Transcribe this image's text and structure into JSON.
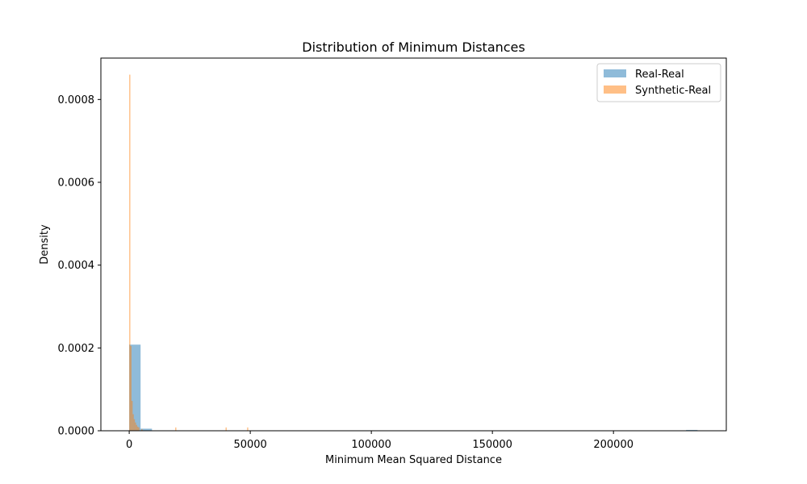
{
  "chart_data": {
    "type": "bar",
    "title": "Distribution of Minimum Distances",
    "xlabel": "Minimum Mean Squared Distance",
    "ylabel": "Density",
    "xlim": [
      -11700,
      246600
    ],
    "ylim": [
      0,
      0.0009
    ],
    "xticks": [
      0,
      50000,
      100000,
      150000,
      200000
    ],
    "xtick_labels": [
      "0",
      "50000",
      "100000",
      "150000",
      "200000"
    ],
    "yticks": [
      0,
      0.0002,
      0.0004,
      0.0006,
      0.0008
    ],
    "ytick_labels": [
      "0.0000",
      "0.0002",
      "0.0004",
      "0.0006",
      "0.0008"
    ],
    "grid": false,
    "legend_position": "top-right",
    "series": [
      {
        "name": "Real-Real",
        "color": "#1f77b4",
        "opacity": 0.5,
        "bins": [
          {
            "x0": 0,
            "x1": 4700,
            "value": 0.000208
          },
          {
            "x0": 4700,
            "x1": 9400,
            "value": 5e-06
          },
          {
            "x0": 230000,
            "x1": 234700,
            "value": 2e-06
          }
        ]
      },
      {
        "name": "Synthetic-Real",
        "color": "#ff7f0e",
        "opacity": 0.5,
        "bins": [
          {
            "x0": 0,
            "x1": 470,
            "value": 0.00086
          },
          {
            "x0": 470,
            "x1": 940,
            "value": 0.000205
          },
          {
            "x0": 940,
            "x1": 1410,
            "value": 7.2e-05
          },
          {
            "x0": 1410,
            "x1": 1880,
            "value": 4e-05
          },
          {
            "x0": 1880,
            "x1": 2350,
            "value": 2.8e-05
          },
          {
            "x0": 2350,
            "x1": 2820,
            "value": 2e-05
          },
          {
            "x0": 2820,
            "x1": 3290,
            "value": 1.4e-05
          },
          {
            "x0": 3290,
            "x1": 3760,
            "value": 1e-05
          },
          {
            "x0": 3760,
            "x1": 4230,
            "value": 8e-06
          },
          {
            "x0": 5000,
            "x1": 5470,
            "value": 4e-06
          },
          {
            "x0": 19000,
            "x1": 19470,
            "value": 8e-06
          },
          {
            "x0": 39800,
            "x1": 40270,
            "value": 8e-06
          },
          {
            "x0": 48700,
            "x1": 49170,
            "value": 8e-06
          }
        ]
      }
    ]
  }
}
